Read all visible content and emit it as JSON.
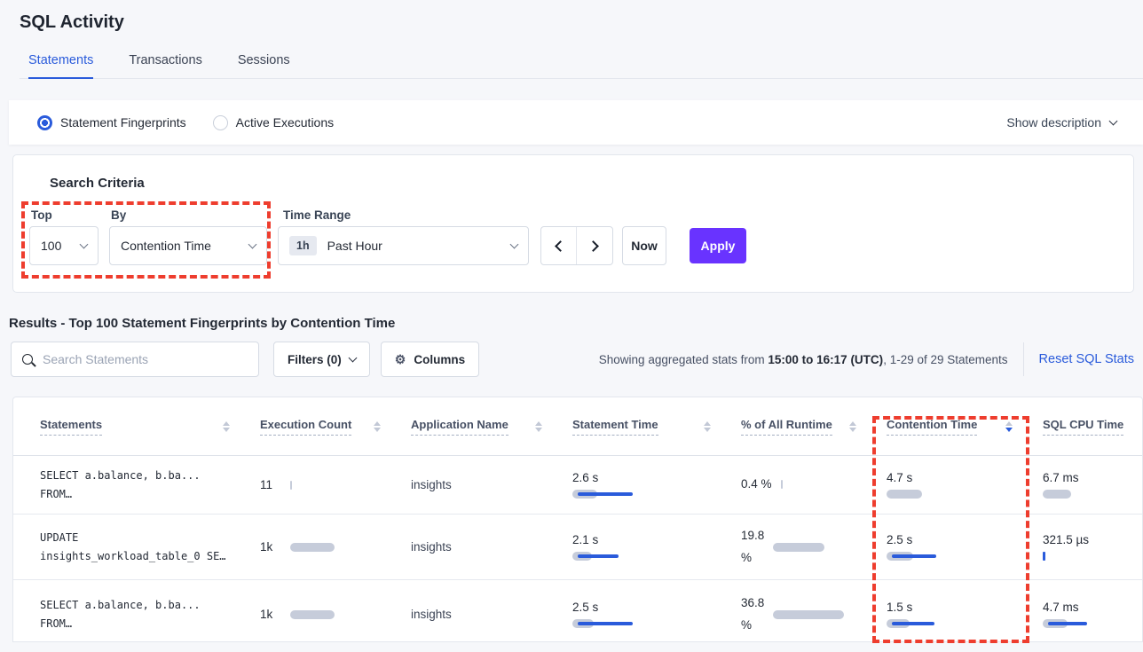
{
  "page": {
    "title": "SQL Activity"
  },
  "tabs": [
    {
      "label": "Statements",
      "active": true
    },
    {
      "label": "Transactions",
      "active": false
    },
    {
      "label": "Sessions",
      "active": false
    }
  ],
  "view_toggle": {
    "options": [
      {
        "label": "Statement Fingerprints",
        "selected": true
      },
      {
        "label": "Active Executions",
        "selected": false
      }
    ],
    "show_description_label": "Show description"
  },
  "search_criteria": {
    "heading": "Search Criteria",
    "top": {
      "label": "Top",
      "value": "100"
    },
    "by": {
      "label": "By",
      "value": "Contention Time"
    },
    "time_range": {
      "label": "Time Range",
      "badge": "1h",
      "value": "Past Hour"
    },
    "now_label": "Now",
    "apply_label": "Apply"
  },
  "results": {
    "heading": "Results - Top 100 Statement Fingerprints by Contention Time",
    "search_placeholder": "Search Statements",
    "filters_label": "Filters (0)",
    "columns_label": "Columns",
    "stats_prefix": "Showing aggregated stats from ",
    "stats_bold": "15:00 to 16:17 (UTC)",
    "stats_suffix": ", 1-29 of 29 Statements",
    "reset_label": "Reset SQL Stats"
  },
  "table": {
    "columns": [
      "Statements",
      "Execution Count",
      "Application Name",
      "Statement Time",
      "% of All Runtime",
      "Contention Time",
      "SQL CPU Time"
    ],
    "sorted_column": "Contention Time",
    "sort_direction": "desc",
    "rows": [
      {
        "statement": "SELECT a.balance, b.ba...\nFROM…",
        "execution_count": "11",
        "application_name": "insights",
        "statement_time": "2.6 s",
        "pct_runtime": "0.4 %",
        "contention_time": "4.7 s",
        "sql_cpu_time": "6.7 ms",
        "bars": {
          "exec": {
            "gray": 2
          },
          "time": {
            "gray": 28,
            "blue": 62
          },
          "pct": {
            "gray": 2
          },
          "contention": {
            "gray": 40,
            "blue": 0
          },
          "cpu": {
            "gray": 32,
            "blue": 0
          }
        }
      },
      {
        "statement": "UPDATE\ninsights_workload_table_0 SE…",
        "execution_count": "1k",
        "application_name": "insights",
        "statement_time": "2.1 s",
        "pct_runtime": "19.8\n%",
        "contention_time": "2.5 s",
        "sql_cpu_time": "321.5\nµs",
        "bars": {
          "exec": {
            "gray": 50
          },
          "time": {
            "gray": 22,
            "blue": 46
          },
          "pct": {
            "gray": 58
          },
          "contention": {
            "gray": 30,
            "blue": 50
          },
          "cpu": {
            "gray": 0,
            "blue": 3
          }
        }
      },
      {
        "statement": "SELECT a.balance, b.ba...\nFROM…",
        "execution_count": "1k",
        "application_name": "insights",
        "statement_time": "2.5 s",
        "pct_runtime": "36.8\n%",
        "contention_time": "1.5 s",
        "sql_cpu_time": "4.7 ms",
        "bars": {
          "exec": {
            "gray": 50
          },
          "time": {
            "gray": 24,
            "blue": 62
          },
          "pct": {
            "gray": 80
          },
          "contention": {
            "gray": 26,
            "blue": 48
          },
          "cpu": {
            "gray": 28,
            "blue": 44
          }
        }
      }
    ]
  },
  "colors": {
    "accent_blue": "#2a5bdb",
    "apply_purple": "#6933ff",
    "annotation_red": "#ee3d2e",
    "bar_gray": "#c6ccda"
  }
}
